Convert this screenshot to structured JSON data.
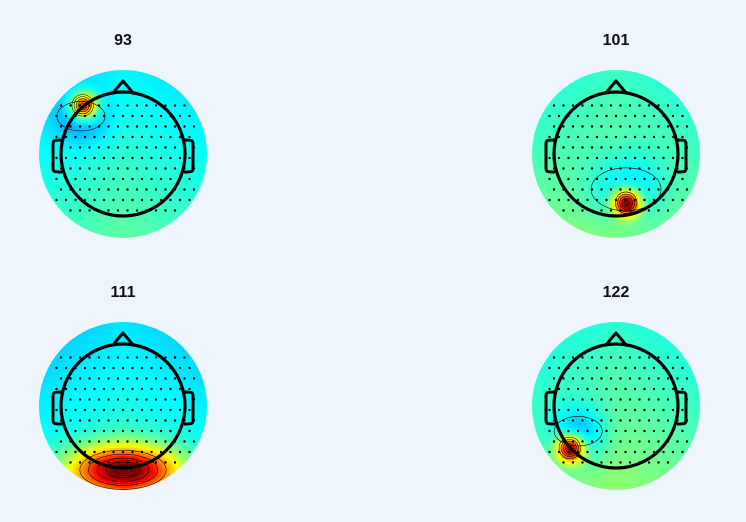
{
  "figure": {
    "panels": [
      {
        "title": "93",
        "colormap": "jet",
        "background_level": 0.42,
        "blobs": [
          {
            "pos": "left-frontal",
            "strength": 0.55,
            "extent": "small"
          },
          {
            "pos": "left-frontal-halo",
            "strength": -0.12,
            "extent": "medium"
          }
        ]
      },
      {
        "title": "101",
        "colormap": "jet",
        "background_level": 0.48,
        "blobs": [
          {
            "pos": "right-posterior",
            "strength": 0.6,
            "extent": "small"
          },
          {
            "pos": "right-posterior-halo",
            "strength": -0.14,
            "extent": "large"
          }
        ]
      },
      {
        "title": "111",
        "colormap": "jet",
        "background_level": 0.4,
        "blobs": [
          {
            "pos": "midline-occipital",
            "strength": 0.6,
            "extent": "wide"
          }
        ]
      },
      {
        "title": "122",
        "colormap": "jet",
        "background_level": 0.47,
        "blobs": [
          {
            "pos": "left-occipital",
            "strength": 0.55,
            "extent": "small"
          },
          {
            "pos": "left-occipital-halo",
            "strength": -0.16,
            "extent": "medium"
          }
        ]
      }
    ],
    "colors": {
      "background": "#eef5fd",
      "outline": "#000000"
    }
  }
}
